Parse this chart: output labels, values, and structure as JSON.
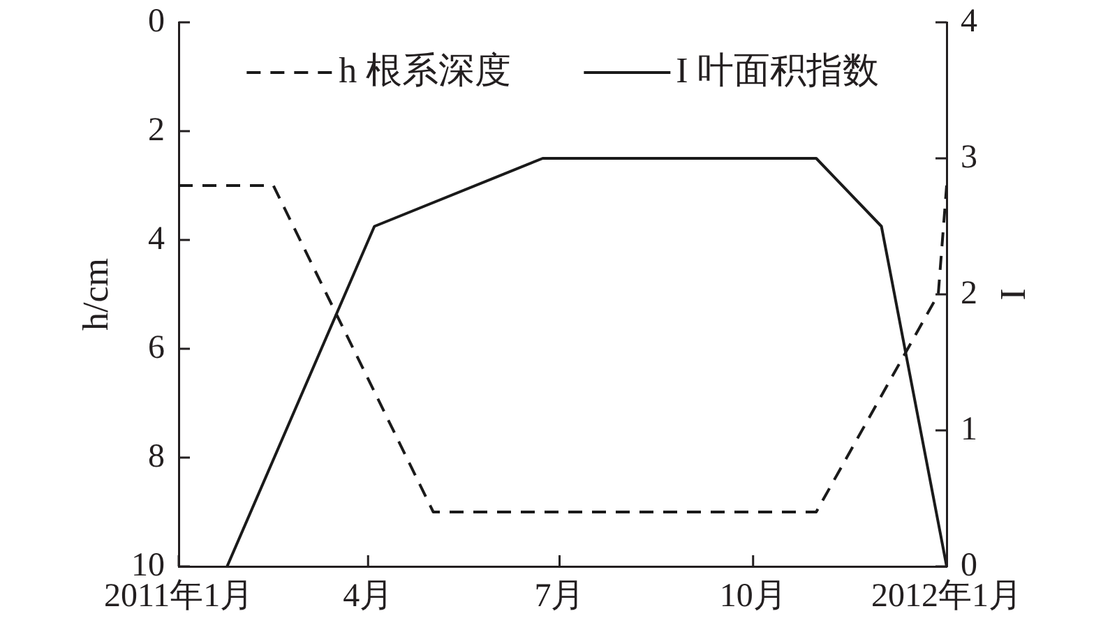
{
  "chart_data": {
    "type": "line",
    "xlim": [
      "2011-01-01",
      "2012-01-01"
    ],
    "xticks": [
      {
        "value": "2011-01-01",
        "label": "2011年1月"
      },
      {
        "value": "2011-04-01",
        "label": "4月"
      },
      {
        "value": "2011-07-01",
        "label": "7月"
      },
      {
        "value": "2011-10-01",
        "label": "10月"
      },
      {
        "value": "2012-01-01",
        "label": "2012年1月"
      }
    ],
    "ylabel": "h/cm",
    "y2label": "I",
    "ylim": [
      10,
      0
    ],
    "yticks": [
      0,
      2,
      4,
      6,
      8,
      10
    ],
    "y2lim": [
      0,
      4
    ],
    "y2ticks": [
      0,
      1,
      2,
      3,
      4
    ],
    "legend": "top",
    "marker": "none",
    "grid": false,
    "series": [
      {
        "name": "h 根系深度",
        "color": "#1a1a1a",
        "line_style": "dashed",
        "x": [
          "2011-01-01",
          "2011-02-15",
          "2011-05-02",
          "2011-10-31",
          "2011-12-28",
          "2012-01-01"
        ],
        "values": [
          3,
          3,
          9,
          9,
          5,
          3
        ]
      },
      {
        "name": "I 叶面积指数",
        "color": "#1a1a1a",
        "line_style": "solid",
        "axis": "y2",
        "x": [
          "2011-01-24",
          "2011-04-04",
          "2011-06-23",
          "2011-10-31",
          "2011-12-01",
          "2012-01-01"
        ],
        "values": [
          0,
          2.5,
          3,
          3,
          2.5,
          0
        ]
      }
    ]
  }
}
